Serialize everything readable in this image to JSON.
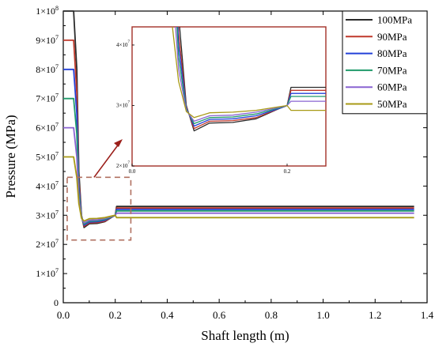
{
  "chart_data": {
    "type": "line",
    "xlabel": "Shaft length (m)",
    "ylabel": "Pressure (MPa)",
    "xlim": [
      0.0,
      1.4
    ],
    "ylim": [
      0,
      100000000
    ],
    "x_ticks": [
      "0.0",
      "0.2",
      "0.4",
      "0.6",
      "0.8",
      "1.0",
      "1.2",
      "1.4"
    ],
    "y_ticks": [
      {
        "mant": "0",
        "exp": ""
      },
      {
        "mant": "1×10",
        "exp": "7"
      },
      {
        "mant": "2×10",
        "exp": "7"
      },
      {
        "mant": "3×10",
        "exp": "7"
      },
      {
        "mant": "4×10",
        "exp": "7"
      },
      {
        "mant": "5×10",
        "exp": "7"
      },
      {
        "mant": "6×10",
        "exp": "7"
      },
      {
        "mant": "7×10",
        "exp": "7"
      },
      {
        "mant": "8×10",
        "exp": "7"
      },
      {
        "mant": "9×10",
        "exp": "7"
      },
      {
        "mant": "1×10",
        "exp": "8"
      }
    ],
    "legend_position": "top-right",
    "grid": false,
    "series": [
      {
        "name": "100MPa",
        "color": "#2b2b2b",
        "x": [
          0.0,
          0.04,
          0.052,
          0.06,
          0.07,
          0.08,
          0.1,
          0.13,
          0.16,
          0.19,
          0.2,
          0.205,
          1.35
        ],
        "y": [
          100000000,
          100000000,
          80000000,
          45000000,
          30000000,
          25800000,
          27100000,
          27200000,
          27800000,
          29500000,
          30000000,
          33000000,
          33000000
        ]
      },
      {
        "name": "90MPa",
        "color": "#c0392b",
        "x": [
          0.0,
          0.04,
          0.052,
          0.06,
          0.07,
          0.08,
          0.1,
          0.13,
          0.16,
          0.19,
          0.2,
          0.205,
          1.35
        ],
        "y": [
          90000000,
          90000000,
          72000000,
          42000000,
          29800000,
          26200000,
          27400000,
          27500000,
          28000000,
          29500000,
          30000000,
          32500000,
          32500000
        ]
      },
      {
        "name": "80MPa",
        "color": "#2340d8",
        "x": [
          0.0,
          0.04,
          0.052,
          0.06,
          0.07,
          0.08,
          0.1,
          0.13,
          0.16,
          0.19,
          0.2,
          0.205,
          1.35
        ],
        "y": [
          80000000,
          80000000,
          65000000,
          40000000,
          29600000,
          26600000,
          27700000,
          27800000,
          28300000,
          29500000,
          30000000,
          32000000,
          32000000
        ]
      },
      {
        "name": "70MPa",
        "color": "#1f9a6a",
        "x": [
          0.0,
          0.04,
          0.052,
          0.06,
          0.07,
          0.08,
          0.1,
          0.13,
          0.16,
          0.19,
          0.2,
          0.205,
          1.35
        ],
        "y": [
          70000000,
          70000000,
          58000000,
          38000000,
          29400000,
          27000000,
          28000000,
          28100000,
          28600000,
          29600000,
          30000000,
          31500000,
          31500000
        ]
      },
      {
        "name": "60MPa",
        "color": "#8a63d2",
        "x": [
          0.0,
          0.04,
          0.052,
          0.06,
          0.07,
          0.08,
          0.1,
          0.13,
          0.16,
          0.19,
          0.2,
          0.205,
          1.35
        ],
        "y": [
          60000000,
          60000000,
          50000000,
          36000000,
          29200000,
          27400000,
          28300000,
          28400000,
          28900000,
          29700000,
          30000000,
          30700000,
          30700000
        ]
      },
      {
        "name": "50MPa",
        "color": "#a89a16",
        "x": [
          0.0,
          0.04,
          0.052,
          0.06,
          0.07,
          0.08,
          0.1,
          0.13,
          0.16,
          0.19,
          0.2,
          0.205,
          1.35
        ],
        "y": [
          50000000,
          50000000,
          43000000,
          34000000,
          29000000,
          28000000,
          28800000,
          28900000,
          29200000,
          29800000,
          30000000,
          29200000,
          29200000
        ]
      }
    ],
    "inset": {
      "xlim": [
        0.0,
        0.25
      ],
      "ylim": [
        20000000,
        43000000
      ],
      "x_ticks": [
        "0.0",
        "0.2"
      ],
      "y_ticks": [
        {
          "mant": "2×10",
          "exp": "7"
        },
        {
          "mant": "3×10",
          "exp": "7"
        },
        {
          "mant": "4×10",
          "exp": "7"
        }
      ]
    }
  }
}
